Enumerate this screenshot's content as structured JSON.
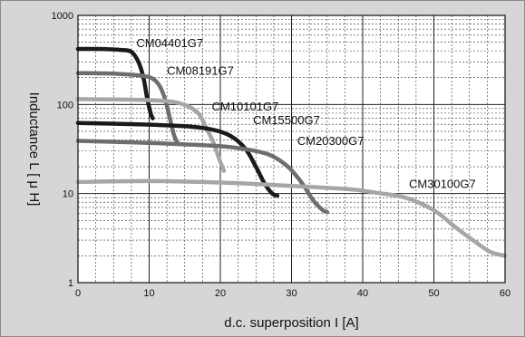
{
  "chart_data": {
    "type": "line",
    "title": "",
    "xlabel": "d.c. superposition I [A]",
    "ylabel": "Inductance L [ μ H]",
    "xlim": [
      0,
      60
    ],
    "ylim": [
      1,
      1000
    ],
    "yscale": "log",
    "grid": true,
    "x_ticks": [
      "0",
      "10",
      "20",
      "30",
      "40",
      "50",
      "60"
    ],
    "y_ticks": [
      "1",
      "10",
      "100",
      "1000"
    ],
    "series": [
      {
        "name": "CM04401G7",
        "color": "#1a1a1a",
        "points": [
          [
            0,
            420
          ],
          [
            3,
            420
          ],
          [
            6,
            410
          ],
          [
            7.5,
            390
          ],
          [
            8.5,
            300
          ],
          [
            9.2,
            200
          ],
          [
            9.7,
            120
          ],
          [
            10.2,
            80
          ],
          [
            10.5,
            70
          ]
        ]
      },
      {
        "name": "CM08191G7",
        "color": "#6e6e6e",
        "points": [
          [
            0,
            225
          ],
          [
            5,
            222
          ],
          [
            9,
            210
          ],
          [
            10.5,
            195
          ],
          [
            11.5,
            160
          ],
          [
            12.3,
            110
          ],
          [
            13,
            65
          ],
          [
            13.5,
            45
          ],
          [
            14,
            37
          ]
        ]
      },
      {
        "name": "CM10101G7",
        "color": "#a6a6a6",
        "points": [
          [
            0,
            115
          ],
          [
            8,
            113
          ],
          [
            13,
            108
          ],
          [
            15.5,
            95
          ],
          [
            17,
            78
          ],
          [
            18,
            55
          ],
          [
            19,
            38
          ],
          [
            19.8,
            25
          ],
          [
            20.5,
            18
          ]
        ]
      },
      {
        "name": "CM15500G7",
        "color": "#1a1a1a",
        "points": [
          [
            0,
            62
          ],
          [
            8,
            60
          ],
          [
            15,
            57
          ],
          [
            19,
            52
          ],
          [
            21.5,
            44
          ],
          [
            23.5,
            32
          ],
          [
            25,
            20
          ],
          [
            26.2,
            13
          ],
          [
            27.3,
            10
          ],
          [
            28,
            9.5
          ]
        ]
      },
      {
        "name": "CM20300G7",
        "color": "#6e6e6e",
        "points": [
          [
            0,
            39
          ],
          [
            10,
            37
          ],
          [
            20,
            34
          ],
          [
            24,
            31
          ],
          [
            27,
            27
          ],
          [
            29.5,
            20
          ],
          [
            31.5,
            13
          ],
          [
            33,
            8.5
          ],
          [
            34.3,
            6.6
          ],
          [
            35,
            6.2
          ]
        ]
      },
      {
        "name": "CM30100G7",
        "color": "#a6a6a6",
        "points": [
          [
            0,
            13.5
          ],
          [
            10,
            13.8
          ],
          [
            20,
            13.3
          ],
          [
            30,
            12.2
          ],
          [
            38,
            11.2
          ],
          [
            42,
            10.2
          ],
          [
            46,
            9
          ],
          [
            50,
            6.5
          ],
          [
            53,
            4.2
          ],
          [
            56,
            2.8
          ],
          [
            58,
            2.2
          ],
          [
            60,
            2
          ]
        ]
      }
    ],
    "annotations": [
      {
        "text": "CM04401G7",
        "x": 8.2,
        "y": 440
      },
      {
        "text": "CM08191G7",
        "x": 12.5,
        "y": 215
      },
      {
        "text": "CM10101G7",
        "x": 18.8,
        "y": 86
      },
      {
        "text": "CM15500G7",
        "x": 24.6,
        "y": 60
      },
      {
        "text": "CM20300G7",
        "x": 30.8,
        "y": 35
      },
      {
        "text": "CM30100G7",
        "x": 46.5,
        "y": 11.5
      }
    ]
  }
}
